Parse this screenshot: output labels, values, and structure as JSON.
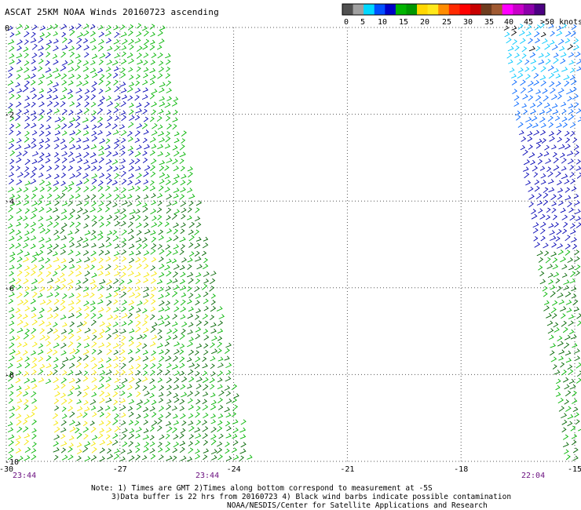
{
  "title": "ASCAT 25KM NOAA Winds 20160723 ascending",
  "colors": {
    "ink": "#000000",
    "grid": "#555555",
    "time_label": "#6a0f7f",
    "barb_blue": "#0000b4",
    "barb_green": "#00b400",
    "barb_darkgreen": "#006400",
    "barb_yellow": "#f5e600",
    "barb_cyan": "#00c8ff",
    "barb_lightblue": "#0064ff",
    "barb_black": "#000000"
  },
  "speed_scale": {
    "labels": [
      "0",
      "5",
      "10",
      "15",
      "20",
      "25",
      "30",
      "35",
      "40",
      "45",
      ">50 knots"
    ],
    "colors": [
      "#505050",
      "#a0a0a0",
      "#00d8ff",
      "#0050ff",
      "#0000c8",
      "#00b400",
      "#009600",
      "#ffd700",
      "#ffe81a",
      "#ff8c00",
      "#ff2a00",
      "#ff0000",
      "#c80000",
      "#6e3c1e",
      "#a05a32",
      "#ff00ff",
      "#c800c8",
      "#8c00aa",
      "#4b0082"
    ]
  },
  "chart_data": {
    "type": "scatter",
    "xlim": [
      -30,
      -15
    ],
    "ylim": [
      -10,
      0
    ],
    "x_ticks": [
      "-30",
      "-27",
      "-24",
      "-21",
      "-18",
      "-15"
    ],
    "y_ticks": [
      "0",
      "-2",
      "-4",
      "-6",
      "-8",
      "-10"
    ],
    "grid": true,
    "series": [
      {
        "speed_bin_knots": "10-15",
        "color": "#0000b4",
        "region": "lon -30 to -26, lat -1 to -4"
      },
      {
        "speed_bin_knots": "15-20",
        "color": "#00b400",
        "region": "main swath lon -30 to -24"
      },
      {
        "speed_bin_knots": "15-20",
        "color": "#006400",
        "region": "lon -28.5 to -24.5, lat -5 to -10"
      },
      {
        "speed_bin_knots": "20-25",
        "color": "#f5e600",
        "region": "lon -29.5 to -25, lat -6 to -10"
      },
      {
        "speed_bin_knots": "5-10",
        "color": "#00c8ff",
        "region": "lon -17.5 to -15, lat 0 to -1"
      },
      {
        "speed_bin_knots": "10-15",
        "color": "#0000b4",
        "region": "lon -16.5 to -15, lat -2 to -5"
      },
      {
        "speed_bin_knots": "15-20",
        "color": "#00b400",
        "region": "lon -16 to -15, lat -5 to -10"
      }
    ]
  },
  "time_labels": {
    "left": "23:44",
    "middle": "23:44",
    "right": "22:04"
  },
  "notes": {
    "line1": "Note: 1) Times are GMT 2)Times along bottom correspond to measurement at -5S",
    "line2": "3)Data buffer is 22 hrs from 20160723 4) Black wind barbs indicate possible contamination",
    "line3": "NOAA/NESDIS/Center for Satellite Applications and Research"
  }
}
